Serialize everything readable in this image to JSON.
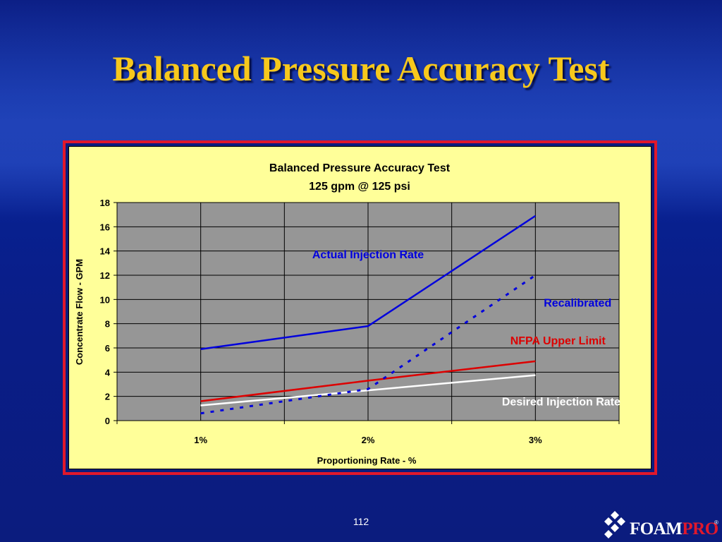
{
  "slide": {
    "title": "Balanced Pressure Accuracy Test",
    "page_number": "112"
  },
  "logo": {
    "text_foam": "FOAM",
    "text_pro": "PRO",
    "reg": "®"
  },
  "colors": {
    "title": "#f7c81c",
    "frame_border": "#e0182c",
    "chart_bg": "#ffff99",
    "plot_bg": "#969696",
    "actual": "#0000dd",
    "recalibrated": "#0000dd",
    "nfpa": "#dd0000",
    "desired": "#ffffff"
  },
  "chart_data": {
    "type": "line",
    "title": "Balanced Pressure Accuracy Test",
    "subtitle": "125 gpm @ 125 psi",
    "xlabel": "Proportioning Rate - %",
    "ylabel": "Concentrate Flow - GPM",
    "categories": [
      "1%",
      "2%",
      "3%"
    ],
    "ylim": [
      0,
      18
    ],
    "yticks": [
      0,
      2,
      4,
      6,
      8,
      10,
      12,
      14,
      16,
      18
    ],
    "grid": true,
    "series": [
      {
        "name": "Actual Injection Rate",
        "values": [
          5.9,
          7.8,
          16.9
        ],
        "color": "#0000dd",
        "dashed": false
      },
      {
        "name": "Recalibrated",
        "values": [
          0.6,
          2.6,
          12.0
        ],
        "color": "#0000dd",
        "dashed": true
      },
      {
        "name": "NFPA Upper Limit",
        "values": [
          1.6,
          3.3,
          4.9
        ],
        "color": "#dd0000",
        "dashed": false
      },
      {
        "name": "Desired Injection Rate",
        "values": [
          1.25,
          2.5,
          3.75
        ],
        "color": "#ffffff",
        "dashed": false
      }
    ]
  }
}
